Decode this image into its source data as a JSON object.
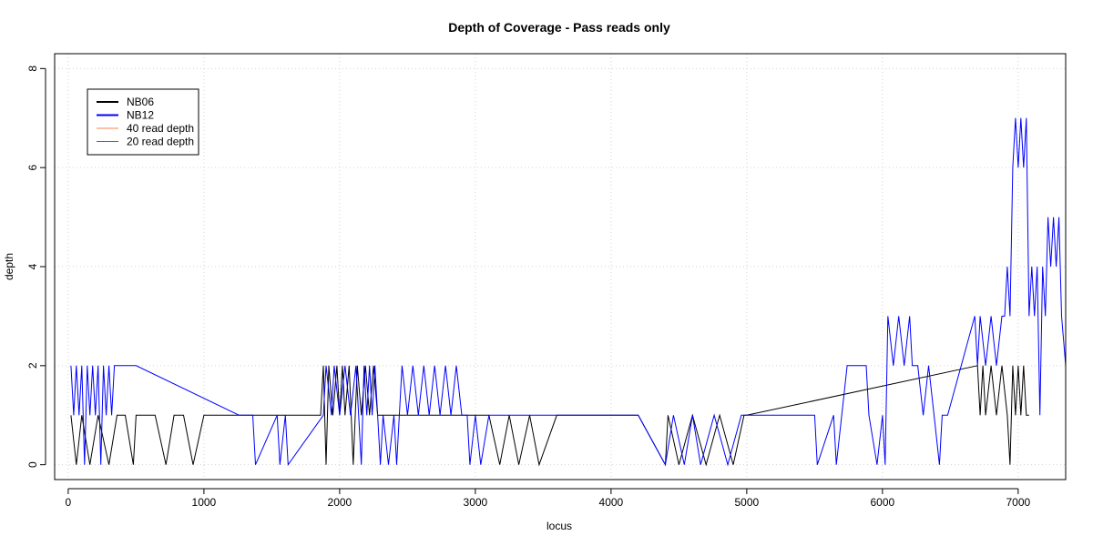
{
  "chart_data": {
    "type": "line",
    "title": "Depth of Coverage - Pass reads only",
    "xlabel": "locus",
    "ylabel": "depth",
    "xlim": [
      -100,
      7350
    ],
    "ylim": [
      -0.3,
      8.3
    ],
    "xticks": [
      0,
      1000,
      2000,
      3000,
      4000,
      5000,
      6000,
      7000
    ],
    "yticks": [
      0,
      2,
      4,
      6,
      8
    ],
    "grid": true,
    "legend_position": "top-left",
    "legend": [
      {
        "label": "NB06",
        "color": "#000000"
      },
      {
        "label": "NB12",
        "color": "#0000ff"
      },
      {
        "label": "40 read depth",
        "color": "#ff7f50"
      },
      {
        "label": "20 read depth",
        "color": "#ff00ff"
      }
    ],
    "series": [
      {
        "name": "NB06",
        "color": "#000000",
        "x": [
          20,
          60,
          100,
          160,
          220,
          300,
          360,
          420,
          480,
          500,
          640,
          720,
          780,
          850,
          920,
          1000,
          1100,
          1860,
          1880,
          1900,
          1920,
          1950,
          1980,
          2000,
          2020,
          2040,
          2070,
          2100,
          2130,
          2160,
          2190,
          2220,
          2250,
          2280,
          2900,
          2950,
          3000,
          3100,
          3180,
          3250,
          3320,
          3400,
          3470,
          3600,
          3800,
          4000,
          4200,
          4400,
          4420,
          4500,
          4600,
          4700,
          4800,
          4900,
          4980,
          5000,
          6700,
          6720,
          6740,
          6760,
          6800,
          6840,
          6880,
          6920,
          6940,
          6960,
          6980,
          7000,
          7020,
          7040,
          7060,
          7080
        ],
        "y": [
          1,
          0,
          1,
          0,
          1,
          0,
          1,
          1,
          0,
          1,
          1,
          0,
          1,
          1,
          0,
          1,
          1,
          1,
          2,
          0,
          2,
          1,
          2,
          1,
          2,
          1,
          2,
          0,
          2,
          1,
          2,
          1,
          2,
          1,
          1,
          1,
          1,
          1,
          0,
          1,
          0,
          1,
          0,
          1,
          1,
          1,
          1,
          0,
          1,
          0,
          1,
          0,
          1,
          0,
          1,
          1,
          2,
          1,
          2,
          1,
          2,
          1,
          2,
          1,
          0,
          2,
          1,
          2,
          1,
          2,
          1,
          1
        ]
      },
      {
        "name": "NB12",
        "color": "#0000ff",
        "x": [
          20,
          40,
          60,
          80,
          100,
          120,
          140,
          160,
          180,
          200,
          220,
          240,
          260,
          280,
          300,
          320,
          340,
          360,
          380,
          400,
          500,
          1260,
          1360,
          1380,
          1540,
          1560,
          1600,
          1620,
          1880,
          1900,
          1940,
          1960,
          2000,
          2040,
          2080,
          2120,
          2160,
          2180,
          2200,
          2220,
          2240,
          2260,
          2280,
          2300,
          2320,
          2360,
          2400,
          2420,
          2440,
          2460,
          2500,
          2540,
          2580,
          2620,
          2660,
          2700,
          2740,
          2780,
          2820,
          2860,
          2900,
          2940,
          2960,
          3000,
          3040,
          3100,
          3200,
          3300,
          4200,
          4400,
          4460,
          4540,
          4600,
          4660,
          4760,
          4860,
          4960,
          5000,
          5500,
          5520,
          5640,
          5660,
          5740,
          5760,
          5880,
          5900,
          5960,
          6000,
          6020,
          6040,
          6080,
          6120,
          6160,
          6200,
          6220,
          6260,
          6300,
          6340,
          6380,
          6420,
          6440,
          6460,
          6480,
          6680,
          6700,
          6720,
          6760,
          6800,
          6840,
          6880,
          6900,
          6920,
          6940,
          6960,
          6980,
          7000,
          7020,
          7040,
          7060,
          7080,
          7100,
          7120,
          7140,
          7160,
          7180,
          7200,
          7220,
          7240,
          7260,
          7280,
          7300,
          7320,
          7350
        ],
        "y": [
          2,
          1,
          2,
          1,
          2,
          0,
          2,
          1,
          2,
          1,
          2,
          0,
          2,
          1,
          2,
          1,
          2,
          2,
          2,
          2,
          2,
          1,
          1,
          0,
          1,
          0,
          1,
          0,
          1,
          2,
          1,
          2,
          1,
          2,
          1,
          2,
          0,
          2,
          1,
          2,
          1,
          2,
          1,
          0,
          1,
          0,
          1,
          0,
          1,
          2,
          1,
          2,
          1,
          2,
          1,
          2,
          1,
          2,
          1,
          2,
          1,
          1,
          0,
          1,
          0,
          1,
          1,
          1,
          1,
          0,
          1,
          0,
          1,
          0,
          1,
          0,
          1,
          1,
          1,
          0,
          1,
          0,
          2,
          2,
          2,
          1,
          0,
          1,
          0,
          3,
          2,
          3,
          2,
          3,
          2,
          2,
          1,
          2,
          1,
          0,
          1,
          1,
          1,
          3,
          2,
          3,
          2,
          3,
          2,
          3,
          3,
          4,
          3,
          6,
          7,
          6,
          7,
          6,
          7,
          3,
          4,
          3,
          4,
          1,
          4,
          3,
          5,
          4,
          5,
          4,
          5,
          3,
          2
        ]
      }
    ]
  }
}
